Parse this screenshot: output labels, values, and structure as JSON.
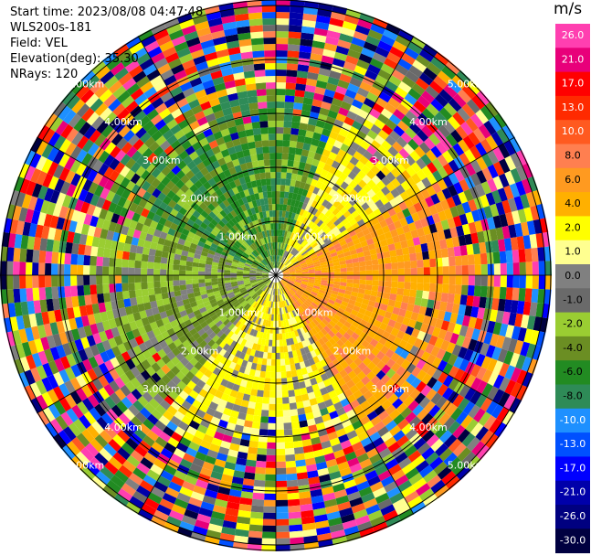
{
  "header": {
    "start_time": "Start time: 2023/08/08 04:47:48",
    "instrument": "WLS200s-181",
    "field": "Field: VEL",
    "elevation": "Elevation(deg): 35.30",
    "nrays": "NRays: 120"
  },
  "range_rings": [
    "1.00km",
    "2.00km",
    "3.00km",
    "4.00km",
    "5.00km"
  ],
  "colorbar": {
    "unit": "m/s",
    "tick_labels": [
      "26.0",
      "21.0",
      "17.0",
      "13.0",
      "10.0",
      "8.0",
      "6.0",
      "4.0",
      "2.0",
      "1.0",
      "0.0",
      "-1.0",
      "-2.0",
      "-4.0",
      "-6.0",
      "-8.0",
      "-10.0",
      "-13.0",
      "-17.0",
      "-21.0",
      "-26.0",
      "-30.0"
    ],
    "colors": [
      "#ff3fb0",
      "#e8007a",
      "#ff0000",
      "#ff2a00",
      "#ff5a20",
      "#ff7f50",
      "#ff9a20",
      "#ffb000",
      "#ffff00",
      "#ffff90",
      "#808080",
      "#6a6a6a",
      "#9acd32",
      "#6b8e23",
      "#228b22",
      "#2e8b57",
      "#1e90ff",
      "#0050ff",
      "#0000ff",
      "#0000aa",
      "#000080",
      "#000040"
    ]
  }
}
